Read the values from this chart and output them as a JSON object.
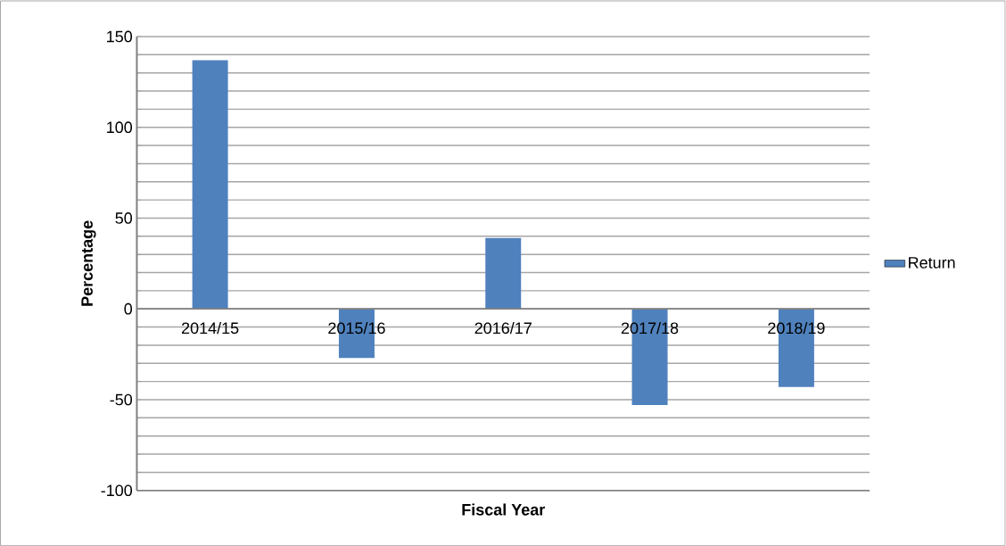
{
  "chart_data": {
    "type": "bar",
    "xlabel": "Fiscal Year",
    "ylabel": "Percentage",
    "categories": [
      "2014/15",
      "2015/16",
      "2016/17",
      "2017/18",
      "2018/19"
    ],
    "series": [
      {
        "name": "Return",
        "color": "#4f81bd",
        "values": [
          137,
          -27,
          39,
          -53,
          -43
        ]
      }
    ],
    "ylim": [
      -100,
      150
    ],
    "yticks": [
      -100,
      {
        "value": -90,
        "label": null
      },
      {
        "value": -80,
        "label": null
      },
      {
        "value": -70,
        "label": null
      },
      {
        "value": -60,
        "label": null
      },
      -50,
      {
        "value": -40,
        "label": null
      },
      {
        "value": -30,
        "label": null
      },
      {
        "value": -20,
        "label": null
      },
      {
        "value": -10,
        "label": null
      },
      0,
      {
        "value": 10,
        "label": null
      },
      {
        "value": 20,
        "label": null
      },
      {
        "value": 30,
        "label": null
      },
      {
        "value": 40,
        "label": null
      },
      50,
      {
        "value": 60,
        "label": null
      },
      {
        "value": 70,
        "label": null
      },
      {
        "value": 80,
        "label": null
      },
      {
        "value": 90,
        "label": null
      },
      100,
      {
        "value": 110,
        "label": null
      },
      {
        "value": 120,
        "label": null
      },
      {
        "value": 130,
        "label": null
      },
      {
        "value": 140,
        "label": null
      },
      150
    ],
    "grid": "y",
    "legend": "right"
  }
}
